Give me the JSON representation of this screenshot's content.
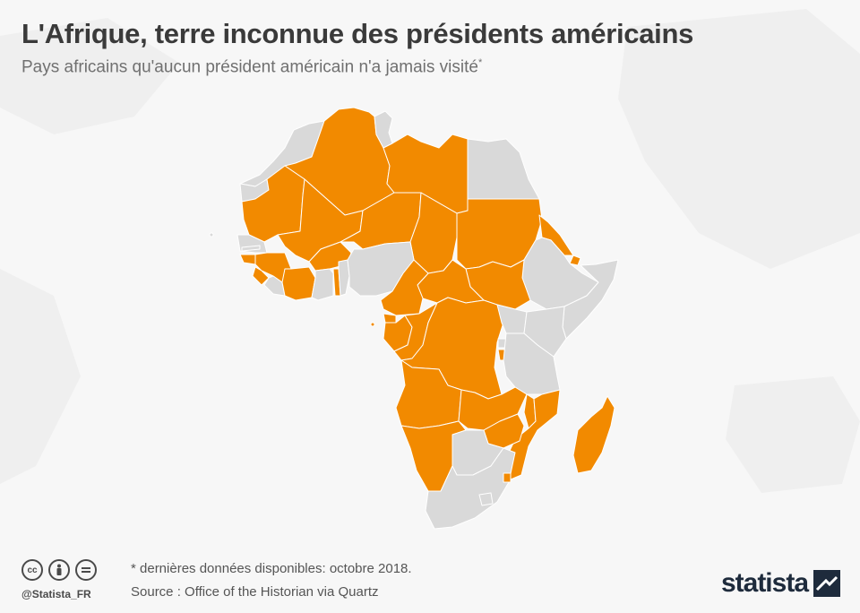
{
  "header": {
    "title": "L'Afrique, terre inconnue des présidents américains",
    "subtitle": "Pays africains qu'aucun président américain n'a jamais visité",
    "subtitle_mark": "*"
  },
  "map": {
    "colors": {
      "never_visited": "#f28a00",
      "visited": "#d9d9d9"
    },
    "never_visited": [
      "Algérie",
      "Libye",
      "Mauritanie",
      "Mali",
      "Niger",
      "Tchad",
      "Soudan",
      "Érythrée",
      "Soudan du Sud",
      "République centrafricaine",
      "Cameroun",
      "Guinée équatoriale",
      "Gabon",
      "République du Congo",
      "RD Congo",
      "Burundi",
      "Angola",
      "Zambie",
      "Malawi",
      "Mozambique",
      "Zimbabwe",
      "Namibie",
      "Madagascar",
      "Eswatini",
      "Burkina Faso",
      "Guinée",
      "Guinée-Bissau",
      "Sierra Leone",
      "Côte d'Ivoire",
      "Togo",
      "Djibouti",
      "Sao Tomé-et-Principe"
    ],
    "visited": [
      "Maroc",
      "Tunisie",
      "Égypte",
      "Sénégal",
      "Gambie",
      "Liberia",
      "Ghana",
      "Bénin",
      "Nigeria",
      "Éthiopie",
      "Somalie",
      "Kenya",
      "Ouganda",
      "Rwanda",
      "Tanzanie",
      "Botswana",
      "Afrique du Sud",
      "Lesotho"
    ]
  },
  "footer": {
    "note": "* dernières données disponibles: octobre 2018.",
    "source": "Source : Office of the Historian via Quartz",
    "handle": "@Statista_FR",
    "license_icons": [
      "cc-icon",
      "person-icon",
      "equals-icon"
    ],
    "brand": "statista"
  }
}
